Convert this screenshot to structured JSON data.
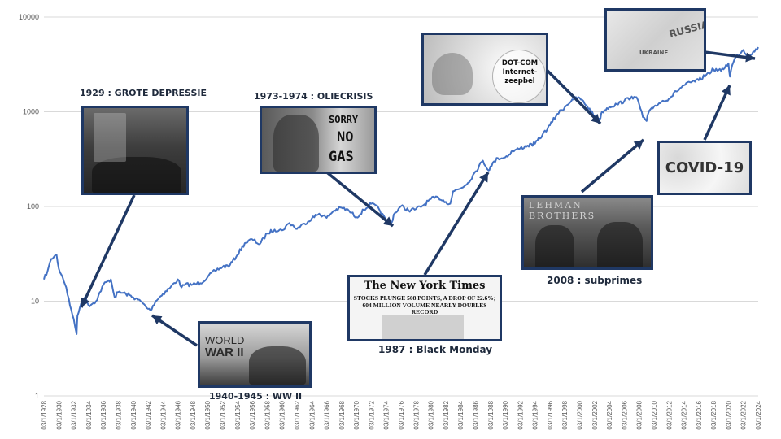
{
  "chart_data": {
    "type": "line",
    "title": "",
    "xlabel": "",
    "ylabel": "",
    "y_scale": "log",
    "ylim": [
      1,
      10000
    ],
    "xlim": [
      "03/1/1928",
      "03/1/2024"
    ],
    "y_ticks": [
      "1",
      "10",
      "100",
      "1000",
      "10000"
    ],
    "x_ticks": [
      "03/1/1928",
      "03/1/1930",
      "03/1/1932",
      "03/1/1934",
      "03/1/1936",
      "03/1/1938",
      "03/1/1940",
      "03/1/1942",
      "03/1/1944",
      "03/1/1946",
      "03/1/1948",
      "03/1/1950",
      "03/1/1952",
      "03/1/1954",
      "03/1/1956",
      "03/1/1958",
      "03/1/1960",
      "03/1/1962",
      "03/1/1964",
      "03/1/1966",
      "03/1/1968",
      "03/1/1970",
      "03/1/1972",
      "03/1/1974",
      "03/1/1976",
      "03/1/1978",
      "03/1/1980",
      "03/1/1982",
      "03/1/1984",
      "03/1/1986",
      "03/1/1988",
      "03/1/1990",
      "03/1/1992",
      "03/1/1994",
      "03/1/1996",
      "03/1/1998",
      "03/1/2000",
      "03/1/2002",
      "03/1/2004",
      "03/1/2006",
      "03/1/2008",
      "03/1/2010",
      "03/1/2012",
      "03/1/2014",
      "03/1/2016",
      "03/1/2018",
      "03/1/2020",
      "03/1/2022",
      "03/1/2024"
    ],
    "grid": "horizontal",
    "legend": "none",
    "series": [
      {
        "color": "#4472c4",
        "x": [
          1928,
          1928.5,
          1929,
          1929.7,
          1930,
          1930.5,
          1931,
          1931.5,
          1932,
          1932.4,
          1932.5,
          1933,
          1933.5,
          1934,
          1935,
          1936,
          1937,
          1937.5,
          1938,
          1939,
          1940,
          1941,
          1942,
          1942.3,
          1943,
          1944,
          1945,
          1946,
          1946.5,
          1947,
          1948,
          1949,
          1950,
          1951,
          1952,
          1953,
          1954,
          1955,
          1956,
          1957,
          1958,
          1959,
          1960,
          1961,
          1962,
          1963,
          1964,
          1965,
          1966,
          1967,
          1968,
          1969,
          1970,
          1971,
          1972,
          1973,
          1974,
          1974.75,
          1975,
          1976,
          1977,
          1978,
          1979,
          1980,
          1981,
          1982,
          1982.6,
          1983,
          1984,
          1985,
          1986,
          1987,
          1987.75,
          1988,
          1989,
          1990,
          1991,
          1992,
          1993,
          1994,
          1995,
          1996,
          1997,
          1998,
          1999,
          2000,
          2001,
          2002,
          2002.8,
          2003,
          2004,
          2005,
          2006,
          2007,
          2007.8,
          2008,
          2008.5,
          2009,
          2009.2,
          2010,
          2011,
          2012,
          2013,
          2014,
          2015,
          2016,
          2017,
          2018,
          2019,
          2020,
          2020.2,
          2020.5,
          2021,
          2022,
          2022.8,
          2023,
          2024
        ],
        "y": [
          17,
          21,
          28,
          31,
          22,
          18,
          14,
          9,
          6.5,
          4.5,
          7,
          9.5,
          11,
          9,
          10,
          15,
          17,
          11,
          12.5,
          12,
          11,
          10,
          8.3,
          8,
          10,
          12,
          14,
          17,
          14,
          15,
          15,
          15.5,
          18,
          21,
          23,
          24,
          31,
          41,
          45,
          40,
          52,
          57,
          56,
          67,
          58,
          66,
          75,
          84,
          76,
          91,
          97,
          90,
          77,
          92,
          107,
          95,
          70,
          68,
          82,
          101,
          91,
          94,
          103,
          120,
          125,
          112,
          107,
          145,
          155,
          178,
          235,
          305,
          240,
          265,
          325,
          330,
          385,
          410,
          440,
          460,
          570,
          720,
          950,
          1120,
          1350,
          1400,
          1150,
          900,
          850,
          1000,
          1130,
          1200,
          1300,
          1450,
          1350,
          1200,
          880,
          800,
          950,
          1140,
          1280,
          1380,
          1640,
          1900,
          2050,
          2150,
          2450,
          2800,
          2700,
          3250,
          2350,
          3100,
          3800,
          4500,
          3700,
          4000,
          4800
        ]
      }
    ],
    "annotations": [
      {
        "label": "1929 : GROTE DEPRESSIE"
      },
      {
        "label": "1973-1974 : OLIECRISIS",
        "image_text": [
          "SORRY",
          "NO",
          "GAS"
        ]
      },
      {
        "label": "1940-1945 : WW II",
        "image_text": [
          "WORLD",
          "WAR II"
        ]
      },
      {
        "label": "1987 : Black Monday",
        "image_text": [
          "The New York Times",
          "STOCKS PLUNGE 508 POINTS, A DROP OF 22.6%;",
          "604 MILLION VOLUME NEARLY DOUBLES RECORD"
        ]
      },
      {
        "image_text": [
          "DOT-COM",
          "Internet-",
          "zeepbel"
        ]
      },
      {
        "label": "2008 : subprimes",
        "image_text": [
          "LEHMAN BROTHERS"
        ]
      },
      {
        "image_text": [
          "COVID-19"
        ]
      },
      {
        "image_text": [
          "RUSSIA",
          "UKRAINE"
        ]
      }
    ]
  }
}
